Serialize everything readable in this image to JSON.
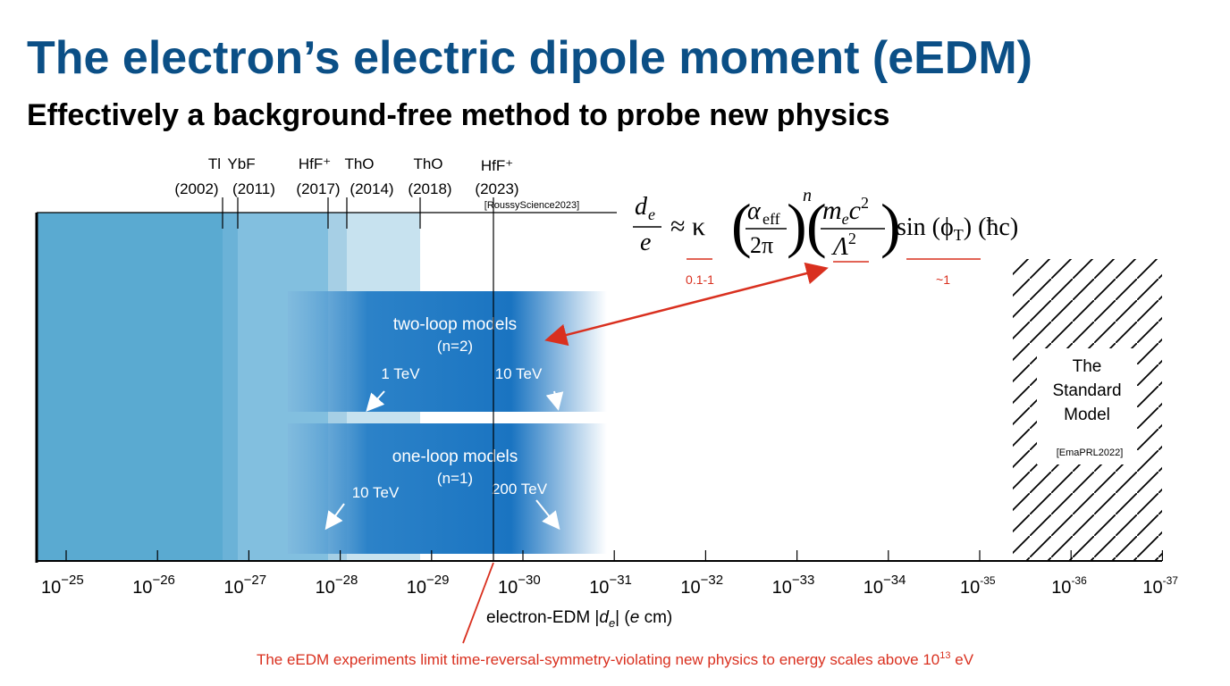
{
  "header": {
    "title": "The electron’s electric dipole moment (eEDM)",
    "subtitle": "Effectively a background-free method to probe new physics"
  },
  "experiments": [
    {
      "name": "Tl",
      "year": "(2002)"
    },
    {
      "name": "YbF",
      "year": "(2011)"
    },
    {
      "name": "HfF⁺",
      "year": "(2017)"
    },
    {
      "name": "ThO",
      "year": "(2014)"
    },
    {
      "name": "ThO",
      "year": "(2018)"
    },
    {
      "name": "HfF⁺",
      "year": "(2023)"
    }
  ],
  "citations": {
    "latest": "[RoussyScience2023]",
    "standard_model": "[EmaPRL2022]"
  },
  "axis": {
    "ticks": [
      {
        "base": "10",
        "exponent": "−25"
      },
      {
        "base": "10",
        "exponent": "−26"
      },
      {
        "base": "10",
        "exponent": "−27"
      },
      {
        "base": "10",
        "exponent": "−28"
      },
      {
        "base": "10",
        "exponent": "−29"
      },
      {
        "base": "10",
        "exponent": "−30"
      },
      {
        "base": "10",
        "exponent": "−31"
      },
      {
        "base": "10",
        "exponent": "−32"
      },
      {
        "base": "10",
        "exponent": "−33"
      },
      {
        "base": "10",
        "exponent": "−34"
      },
      {
        "base": "10",
        "exponent": "-35"
      },
      {
        "base": "10",
        "exponent": "-36"
      },
      {
        "base": "10",
        "exponent": "-37"
      }
    ],
    "label": {
      "before": "electron-EDM |",
      "symbol": "d",
      "sub": "e",
      "mid": "| (",
      "unit_var": "e",
      "after": " cm)"
    }
  },
  "formula": {
    "lhs_num": "d",
    "lhs_num_sub": "e",
    "lhs_den": "e",
    "approx": "≈ κ",
    "alpha": "α",
    "alpha_sub": "eff",
    "alpha_den": "2π",
    "power": "n",
    "m": "m",
    "m_sub": "e",
    "c": "c",
    "c_exp": "2",
    "lambda": "Λ",
    "lambda_exp": "2",
    "sin": "sin (ϕ",
    "sin_sub": "T",
    "tail": ") (ħc)",
    "note_kappa": "0.1-1",
    "note_phase": "~1"
  },
  "models": [
    {
      "title": "two-loop models",
      "order": "(n=2)",
      "low": "1 TeV",
      "high": "10 TeV"
    },
    {
      "title": "one-loop models",
      "order": "(n=1)",
      "low": "10 TeV",
      "high": "200 TeV"
    }
  ],
  "standard_model": [
    "The",
    "Standard",
    "Model"
  ],
  "caption": {
    "text": "The eEDM experiments limit time-reversal-symmetry-violating new physics to energy scales above 10",
    "exp": "13",
    "unit": " eV"
  }
}
